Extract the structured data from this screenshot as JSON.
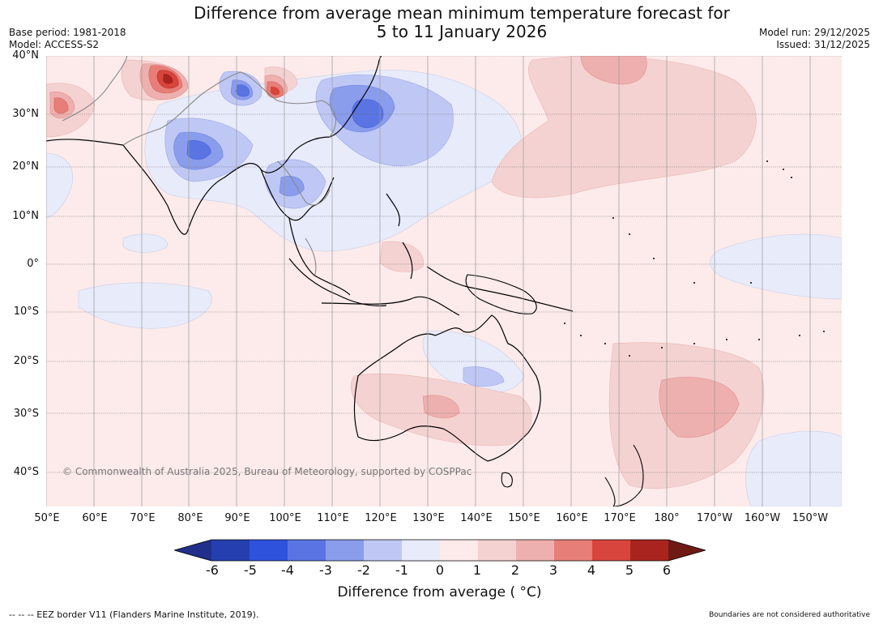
{
  "title_line1": "Difference from average mean minimum temperature forecast for",
  "title_line2": "5 to 11 January 2026",
  "base_period": "Base period: 1981-2018",
  "model": "Model: ACCESS-S2",
  "model_run": "Model run: 29/12/2025",
  "issued": "Issued: 31/12/2025",
  "copyright": "© Commonwealth of Australia 2025, Bureau of Meteorology, supported by COSPPac",
  "lat_labels": [
    "40°N",
    "30°N",
    "20°N",
    "10°N",
    "0°",
    "10°S",
    "20°S",
    "30°S",
    "40°S"
  ],
  "lon_labels": [
    "50°E",
    "60°E",
    "70°E",
    "80°E",
    "90°E",
    "100°E",
    "110°E",
    "120°E",
    "130°E",
    "140°E",
    "150°E",
    "160°E",
    "170°E",
    "180°",
    "170°W",
    "160°W",
    "150°W"
  ],
  "colorbar": {
    "ticks": [
      "-6",
      "-5",
      "-4",
      "-3",
      "-2",
      "-1",
      "0",
      "1",
      "2",
      "3",
      "4",
      "5",
      "6"
    ],
    "colors": [
      "#1f2f8a",
      "#263fb0",
      "#2f52dc",
      "#5a75e3",
      "#8a9cec",
      "#bfc8f5",
      "#e8ebfa",
      "#fcebea",
      "#f5d2d2",
      "#eeb0ae",
      "#e77e78",
      "#d8453c",
      "#a9241f",
      "#701a16"
    ],
    "label": "Difference from average ( °C)"
  },
  "footer_left": "--  --  -- EEZ border V11 (Flanders Marine Institute, 2019).",
  "footer_right": "Boundaries are not considered authoritative"
}
